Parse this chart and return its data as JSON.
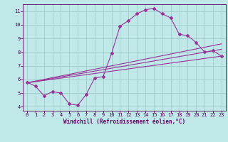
{
  "title": "",
  "xlabel": "Windchill (Refroidissement éolien,°C)",
  "ylabel": "",
  "bg_color": "#c0e8e8",
  "grid_color": "#a0cccc",
  "line_color": "#993399",
  "xlim": [
    -0.5,
    23.5
  ],
  "ylim": [
    3.7,
    11.5
  ],
  "xticks": [
    0,
    1,
    2,
    3,
    4,
    5,
    6,
    7,
    8,
    9,
    10,
    11,
    12,
    13,
    14,
    15,
    16,
    17,
    18,
    19,
    20,
    21,
    22,
    23
  ],
  "yticks": [
    4,
    5,
    6,
    7,
    8,
    9,
    10,
    11
  ],
  "lines": [
    {
      "x": [
        0,
        1,
        2,
        3,
        4,
        5,
        6,
        7,
        8,
        9,
        10,
        11,
        12,
        13,
        14,
        15,
        16,
        17,
        18,
        19,
        20,
        21,
        22,
        23
      ],
      "y": [
        5.8,
        5.5,
        4.8,
        5.1,
        5.0,
        4.2,
        4.1,
        4.9,
        6.1,
        6.2,
        7.9,
        9.9,
        10.3,
        10.8,
        11.1,
        11.2,
        10.8,
        10.5,
        9.3,
        9.2,
        8.7,
        8.0,
        8.1,
        7.7
      ]
    },
    {
      "x": [
        0,
        23
      ],
      "y": [
        5.75,
        7.7
      ]
    },
    {
      "x": [
        0,
        23
      ],
      "y": [
        5.75,
        8.2
      ]
    },
    {
      "x": [
        0,
        23
      ],
      "y": [
        5.75,
        8.6
      ]
    }
  ],
  "marker": "D",
  "markersize": 2.0,
  "linewidth": 0.8,
  "xlabel_fontsize": 5.5,
  "tick_fontsize": 5.0,
  "xlabel_color": "#660066",
  "tick_color": "#550055",
  "spine_color": "#550055"
}
